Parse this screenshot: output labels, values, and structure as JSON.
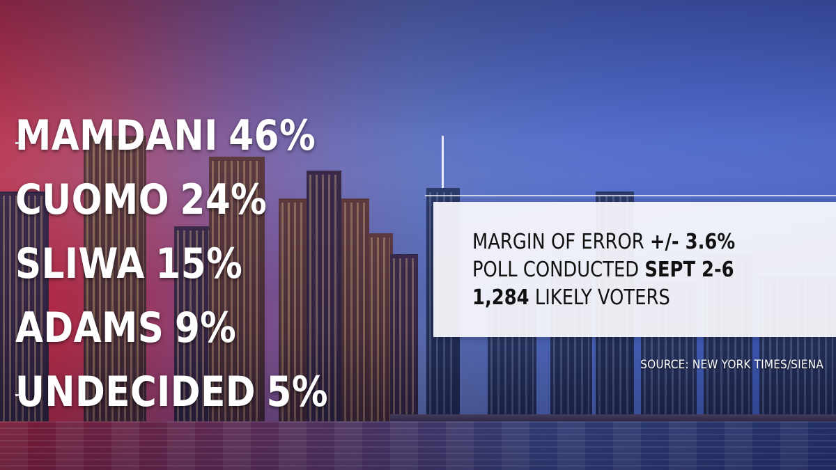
{
  "results": [
    {
      "name": "MAMDANI",
      "pct": "46%",
      "value": 46
    },
    {
      "name": "CUOMO",
      "pct": "24%",
      "value": 24
    },
    {
      "name": "SLIWA",
      "pct": "15%",
      "value": 15
    },
    {
      "name": "ADAMS",
      "pct": "9%",
      "value": 9
    },
    {
      "name": "UNDECIDED",
      "pct": "5%",
      "value": 5
    }
  ],
  "info": {
    "margin_label": "MARGIN OF ERROR ",
    "margin_value": "+/- 3.6%",
    "dates_label": "POLL CONDUCTED ",
    "dates_value": "SEPT 2-6",
    "voters_value": "1,284",
    "voters_label": " LIKELY VOTERS"
  },
  "source": "SOURCE: NEW YORK TIMES/SIENA",
  "colors": {
    "left_red": "#b8213a",
    "right_blue": "#3650a8",
    "text_white": "#ffffff",
    "panel_bg": "#f8f8fc",
    "panel_text": "#111111"
  }
}
